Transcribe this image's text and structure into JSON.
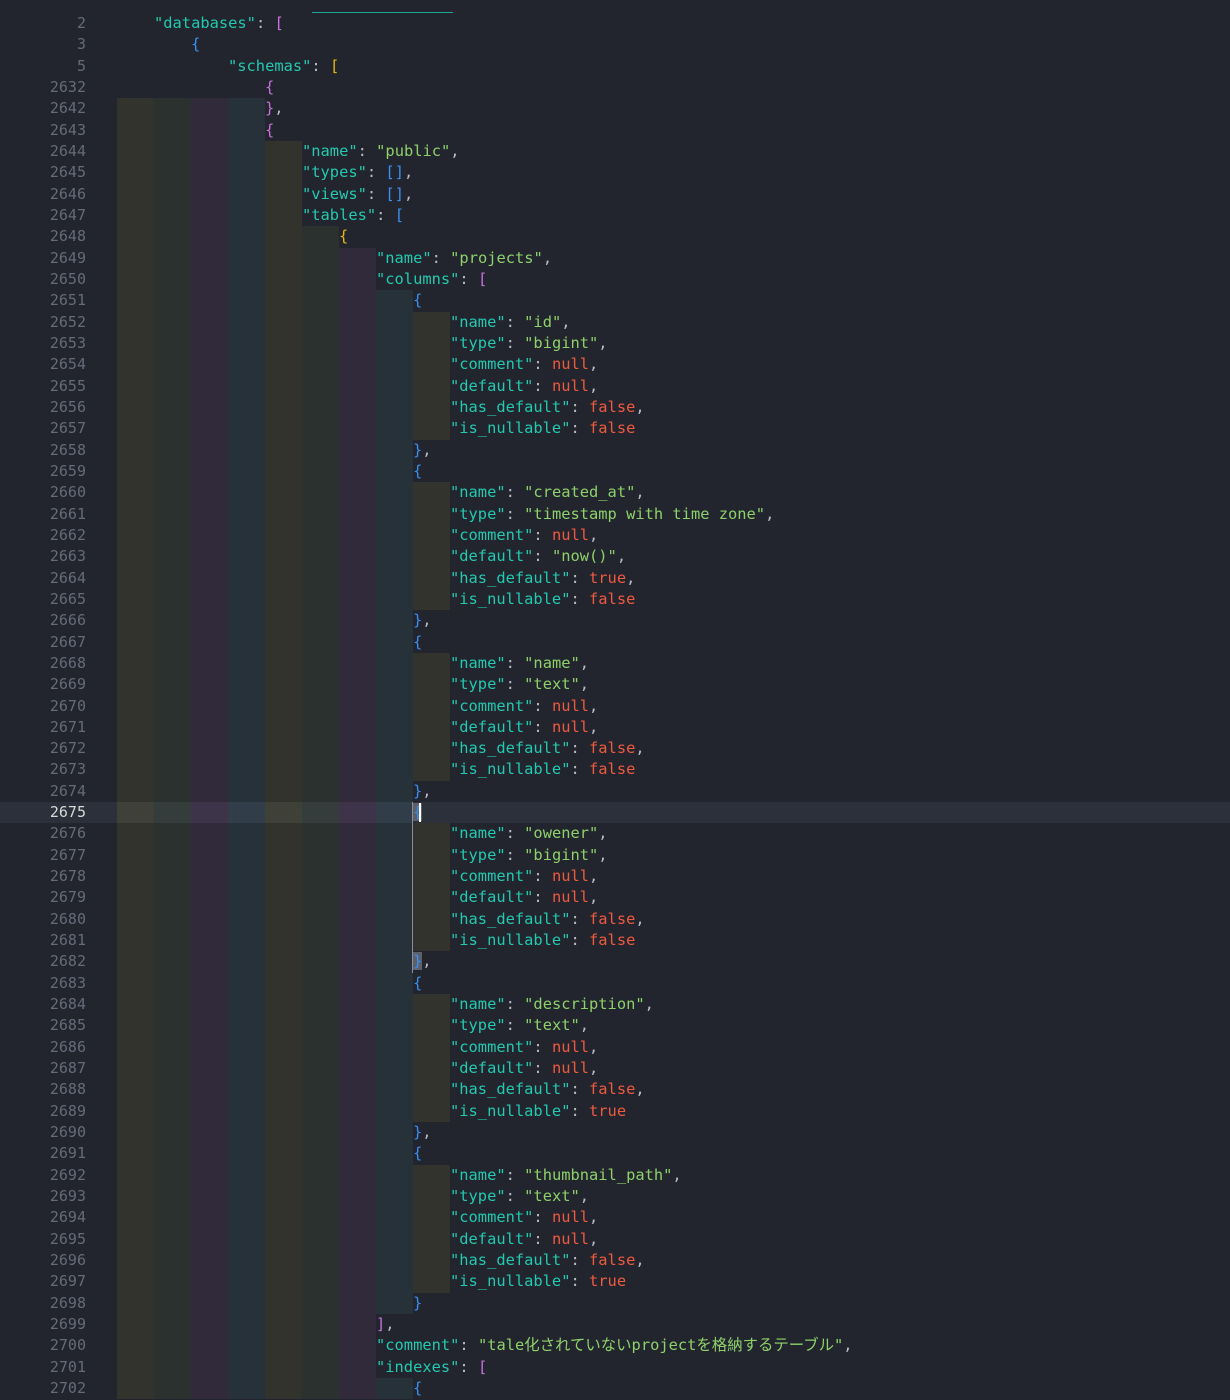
{
  "editor": {
    "current_line": "2675",
    "matched_lines": [
      "2675",
      "2682"
    ],
    "colors": {
      "background": "#22252e",
      "key": "#23c9b0",
      "string": "#8ed16a",
      "literal": "#ef5a3f",
      "bracket_depth_colors": [
        "#e8b60f",
        "#c86fdb",
        "#3a8ff0"
      ]
    },
    "lines": [
      {
        "n": "2",
        "i": 1,
        "t": [
          [
            "k",
            "\"databases\""
          ],
          [
            "p",
            ": "
          ],
          [
            "b",
            "[",
            1
          ]
        ]
      },
      {
        "n": "3",
        "i": 2,
        "t": [
          [
            "b",
            "{",
            2
          ]
        ]
      },
      {
        "n": "5",
        "i": 3,
        "t": [
          [
            "k",
            "\"schemas\""
          ],
          [
            "p",
            ": "
          ],
          [
            "b",
            "[",
            3
          ]
        ]
      },
      {
        "n": "2632",
        "i": 4,
        "t": [
          [
            "b",
            "{",
            4
          ]
        ]
      },
      {
        "n": "2642",
        "i": 4,
        "t": [
          [
            "b",
            "}",
            4
          ],
          [
            "p",
            ","
          ]
        ]
      },
      {
        "n": "2643",
        "i": 4,
        "t": [
          [
            "b",
            "{",
            4
          ]
        ]
      },
      {
        "n": "2644",
        "i": 5,
        "t": [
          [
            "k",
            "\"name\""
          ],
          [
            "p",
            ": "
          ],
          [
            "s",
            "\"public\""
          ],
          [
            "p",
            ","
          ]
        ]
      },
      {
        "n": "2645",
        "i": 5,
        "t": [
          [
            "k",
            "\"types\""
          ],
          [
            "p",
            ": "
          ],
          [
            "b",
            "[]",
            5
          ],
          [
            "p",
            ","
          ]
        ]
      },
      {
        "n": "2646",
        "i": 5,
        "t": [
          [
            "k",
            "\"views\""
          ],
          [
            "p",
            ": "
          ],
          [
            "b",
            "[]",
            5
          ],
          [
            "p",
            ","
          ]
        ]
      },
      {
        "n": "2647",
        "i": 5,
        "t": [
          [
            "k",
            "\"tables\""
          ],
          [
            "p",
            ": "
          ],
          [
            "b",
            "[",
            5
          ]
        ]
      },
      {
        "n": "2648",
        "i": 6,
        "t": [
          [
            "b",
            "{",
            6
          ]
        ]
      },
      {
        "n": "2649",
        "i": 7,
        "t": [
          [
            "k",
            "\"name\""
          ],
          [
            "p",
            ": "
          ],
          [
            "s",
            "\"projects\""
          ],
          [
            "p",
            ","
          ]
        ]
      },
      {
        "n": "2650",
        "i": 7,
        "t": [
          [
            "k",
            "\"columns\""
          ],
          [
            "p",
            ": "
          ],
          [
            "b",
            "[",
            7
          ]
        ]
      },
      {
        "n": "2651",
        "i": 8,
        "t": [
          [
            "b",
            "{",
            8
          ]
        ]
      },
      {
        "n": "2652",
        "i": 9,
        "t": [
          [
            "k",
            "\"name\""
          ],
          [
            "p",
            ": "
          ],
          [
            "s",
            "\"id\""
          ],
          [
            "p",
            ","
          ]
        ]
      },
      {
        "n": "2653",
        "i": 9,
        "t": [
          [
            "k",
            "\"type\""
          ],
          [
            "p",
            ": "
          ],
          [
            "s",
            "\"bigint\""
          ],
          [
            "p",
            ","
          ]
        ]
      },
      {
        "n": "2654",
        "i": 9,
        "t": [
          [
            "k",
            "\"comment\""
          ],
          [
            "p",
            ": "
          ],
          [
            "v",
            "null"
          ],
          [
            "p",
            ","
          ]
        ]
      },
      {
        "n": "2655",
        "i": 9,
        "t": [
          [
            "k",
            "\"default\""
          ],
          [
            "p",
            ": "
          ],
          [
            "v",
            "null"
          ],
          [
            "p",
            ","
          ]
        ]
      },
      {
        "n": "2656",
        "i": 9,
        "t": [
          [
            "k",
            "\"has_default\""
          ],
          [
            "p",
            ": "
          ],
          [
            "v",
            "false"
          ],
          [
            "p",
            ","
          ]
        ]
      },
      {
        "n": "2657",
        "i": 9,
        "t": [
          [
            "k",
            "\"is_nullable\""
          ],
          [
            "p",
            ": "
          ],
          [
            "v",
            "false"
          ]
        ]
      },
      {
        "n": "2658",
        "i": 8,
        "t": [
          [
            "b",
            "}",
            8
          ],
          [
            "p",
            ","
          ]
        ]
      },
      {
        "n": "2659",
        "i": 8,
        "t": [
          [
            "b",
            "{",
            8
          ]
        ]
      },
      {
        "n": "2660",
        "i": 9,
        "t": [
          [
            "k",
            "\"name\""
          ],
          [
            "p",
            ": "
          ],
          [
            "s",
            "\"created_at\""
          ],
          [
            "p",
            ","
          ]
        ]
      },
      {
        "n": "2661",
        "i": 9,
        "t": [
          [
            "k",
            "\"type\""
          ],
          [
            "p",
            ": "
          ],
          [
            "s",
            "\"timestamp with time zone\""
          ],
          [
            "p",
            ","
          ]
        ]
      },
      {
        "n": "2662",
        "i": 9,
        "t": [
          [
            "k",
            "\"comment\""
          ],
          [
            "p",
            ": "
          ],
          [
            "v",
            "null"
          ],
          [
            "p",
            ","
          ]
        ]
      },
      {
        "n": "2663",
        "i": 9,
        "t": [
          [
            "k",
            "\"default\""
          ],
          [
            "p",
            ": "
          ],
          [
            "s",
            "\"now()\""
          ],
          [
            "p",
            ","
          ]
        ]
      },
      {
        "n": "2664",
        "i": 9,
        "t": [
          [
            "k",
            "\"has_default\""
          ],
          [
            "p",
            ": "
          ],
          [
            "v",
            "true"
          ],
          [
            "p",
            ","
          ]
        ]
      },
      {
        "n": "2665",
        "i": 9,
        "t": [
          [
            "k",
            "\"is_nullable\""
          ],
          [
            "p",
            ": "
          ],
          [
            "v",
            "false"
          ]
        ]
      },
      {
        "n": "2666",
        "i": 8,
        "t": [
          [
            "b",
            "}",
            8
          ],
          [
            "p",
            ","
          ]
        ]
      },
      {
        "n": "2667",
        "i": 8,
        "t": [
          [
            "b",
            "{",
            8
          ]
        ]
      },
      {
        "n": "2668",
        "i": 9,
        "t": [
          [
            "k",
            "\"name\""
          ],
          [
            "p",
            ": "
          ],
          [
            "s",
            "\"name\""
          ],
          [
            "p",
            ","
          ]
        ]
      },
      {
        "n": "2669",
        "i": 9,
        "t": [
          [
            "k",
            "\"type\""
          ],
          [
            "p",
            ": "
          ],
          [
            "s",
            "\"text\""
          ],
          [
            "p",
            ","
          ]
        ]
      },
      {
        "n": "2670",
        "i": 9,
        "t": [
          [
            "k",
            "\"comment\""
          ],
          [
            "p",
            ": "
          ],
          [
            "v",
            "null"
          ],
          [
            "p",
            ","
          ]
        ]
      },
      {
        "n": "2671",
        "i": 9,
        "t": [
          [
            "k",
            "\"default\""
          ],
          [
            "p",
            ": "
          ],
          [
            "v",
            "null"
          ],
          [
            "p",
            ","
          ]
        ]
      },
      {
        "n": "2672",
        "i": 9,
        "t": [
          [
            "k",
            "\"has_default\""
          ],
          [
            "p",
            ": "
          ],
          [
            "v",
            "false"
          ],
          [
            "p",
            ","
          ]
        ]
      },
      {
        "n": "2673",
        "i": 9,
        "t": [
          [
            "k",
            "\"is_nullable\""
          ],
          [
            "p",
            ": "
          ],
          [
            "v",
            "false"
          ]
        ]
      },
      {
        "n": "2674",
        "i": 8,
        "t": [
          [
            "b",
            "}",
            8
          ],
          [
            "p",
            ","
          ]
        ]
      },
      {
        "n": "2675",
        "i": 8,
        "t": [
          [
            "b",
            "{",
            8
          ]
        ]
      },
      {
        "n": "2676",
        "i": 9,
        "t": [
          [
            "k",
            "\"name\""
          ],
          [
            "p",
            ": "
          ],
          [
            "s",
            "\"owener\""
          ],
          [
            "p",
            ","
          ]
        ]
      },
      {
        "n": "2677",
        "i": 9,
        "t": [
          [
            "k",
            "\"type\""
          ],
          [
            "p",
            ": "
          ],
          [
            "s",
            "\"bigint\""
          ],
          [
            "p",
            ","
          ]
        ]
      },
      {
        "n": "2678",
        "i": 9,
        "t": [
          [
            "k",
            "\"comment\""
          ],
          [
            "p",
            ": "
          ],
          [
            "v",
            "null"
          ],
          [
            "p",
            ","
          ]
        ]
      },
      {
        "n": "2679",
        "i": 9,
        "t": [
          [
            "k",
            "\"default\""
          ],
          [
            "p",
            ": "
          ],
          [
            "v",
            "null"
          ],
          [
            "p",
            ","
          ]
        ]
      },
      {
        "n": "2680",
        "i": 9,
        "t": [
          [
            "k",
            "\"has_default\""
          ],
          [
            "p",
            ": "
          ],
          [
            "v",
            "false"
          ],
          [
            "p",
            ","
          ]
        ]
      },
      {
        "n": "2681",
        "i": 9,
        "t": [
          [
            "k",
            "\"is_nullable\""
          ],
          [
            "p",
            ": "
          ],
          [
            "v",
            "false"
          ]
        ]
      },
      {
        "n": "2682",
        "i": 8,
        "t": [
          [
            "b",
            "}",
            8
          ],
          [
            "p",
            ","
          ]
        ]
      },
      {
        "n": "2683",
        "i": 8,
        "t": [
          [
            "b",
            "{",
            8
          ]
        ]
      },
      {
        "n": "2684",
        "i": 9,
        "t": [
          [
            "k",
            "\"name\""
          ],
          [
            "p",
            ": "
          ],
          [
            "s",
            "\"description\""
          ],
          [
            "p",
            ","
          ]
        ]
      },
      {
        "n": "2685",
        "i": 9,
        "t": [
          [
            "k",
            "\"type\""
          ],
          [
            "p",
            ": "
          ],
          [
            "s",
            "\"text\""
          ],
          [
            "p",
            ","
          ]
        ]
      },
      {
        "n": "2686",
        "i": 9,
        "t": [
          [
            "k",
            "\"comment\""
          ],
          [
            "p",
            ": "
          ],
          [
            "v",
            "null"
          ],
          [
            "p",
            ","
          ]
        ]
      },
      {
        "n": "2687",
        "i": 9,
        "t": [
          [
            "k",
            "\"default\""
          ],
          [
            "p",
            ": "
          ],
          [
            "v",
            "null"
          ],
          [
            "p",
            ","
          ]
        ]
      },
      {
        "n": "2688",
        "i": 9,
        "t": [
          [
            "k",
            "\"has_default\""
          ],
          [
            "p",
            ": "
          ],
          [
            "v",
            "false"
          ],
          [
            "p",
            ","
          ]
        ]
      },
      {
        "n": "2689",
        "i": 9,
        "t": [
          [
            "k",
            "\"is_nullable\""
          ],
          [
            "p",
            ": "
          ],
          [
            "v",
            "true"
          ]
        ]
      },
      {
        "n": "2690",
        "i": 8,
        "t": [
          [
            "b",
            "}",
            8
          ],
          [
            "p",
            ","
          ]
        ]
      },
      {
        "n": "2691",
        "i": 8,
        "t": [
          [
            "b",
            "{",
            8
          ]
        ]
      },
      {
        "n": "2692",
        "i": 9,
        "t": [
          [
            "k",
            "\"name\""
          ],
          [
            "p",
            ": "
          ],
          [
            "s",
            "\"thumbnail_path\""
          ],
          [
            "p",
            ","
          ]
        ]
      },
      {
        "n": "2693",
        "i": 9,
        "t": [
          [
            "k",
            "\"type\""
          ],
          [
            "p",
            ": "
          ],
          [
            "s",
            "\"text\""
          ],
          [
            "p",
            ","
          ]
        ]
      },
      {
        "n": "2694",
        "i": 9,
        "t": [
          [
            "k",
            "\"comment\""
          ],
          [
            "p",
            ": "
          ],
          [
            "v",
            "null"
          ],
          [
            "p",
            ","
          ]
        ]
      },
      {
        "n": "2695",
        "i": 9,
        "t": [
          [
            "k",
            "\"default\""
          ],
          [
            "p",
            ": "
          ],
          [
            "v",
            "null"
          ],
          [
            "p",
            ","
          ]
        ]
      },
      {
        "n": "2696",
        "i": 9,
        "t": [
          [
            "k",
            "\"has_default\""
          ],
          [
            "p",
            ": "
          ],
          [
            "v",
            "false"
          ],
          [
            "p",
            ","
          ]
        ]
      },
      {
        "n": "2697",
        "i": 9,
        "t": [
          [
            "k",
            "\"is_nullable\""
          ],
          [
            "p",
            ": "
          ],
          [
            "v",
            "true"
          ]
        ]
      },
      {
        "n": "2698",
        "i": 8,
        "t": [
          [
            "b",
            "}",
            8
          ]
        ]
      },
      {
        "n": "2699",
        "i": 7,
        "t": [
          [
            "b",
            "]",
            7
          ],
          [
            "p",
            ","
          ]
        ]
      },
      {
        "n": "2700",
        "i": 7,
        "t": [
          [
            "k",
            "\"comment\""
          ],
          [
            "p",
            ": "
          ],
          [
            "s",
            "\"tale化されていないprojectを格納するテーブル\""
          ],
          [
            "p",
            ","
          ]
        ]
      },
      {
        "n": "2701",
        "i": 7,
        "t": [
          [
            "k",
            "\"indexes\""
          ],
          [
            "p",
            ": "
          ],
          [
            "b",
            "[",
            7
          ]
        ]
      },
      {
        "n": "2702",
        "i": 8,
        "t": [
          [
            "b",
            "{",
            8
          ]
        ]
      }
    ]
  }
}
